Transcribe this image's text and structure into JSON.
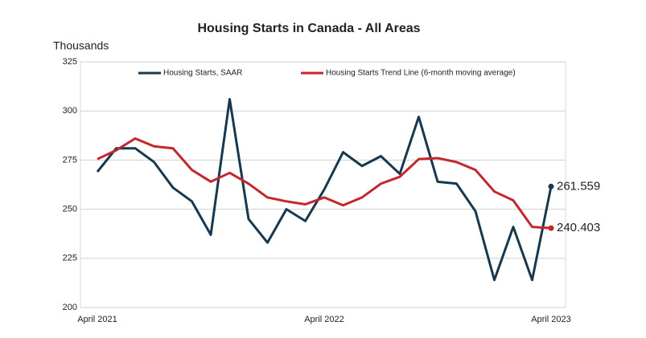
{
  "chart_data": {
    "type": "line",
    "title": "Housing Starts in Canada - All Areas",
    "y_label": "Thousands",
    "categories": [
      "April 2021",
      null,
      null,
      null,
      null,
      null,
      null,
      null,
      null,
      null,
      null,
      null,
      "April 2022",
      null,
      null,
      null,
      null,
      null,
      null,
      null,
      null,
      null,
      null,
      null,
      "April 2023"
    ],
    "series": [
      {
        "name": "Housing Starts, SAAR",
        "color": "#17384f",
        "values": [
          269,
          281,
          281,
          274,
          261,
          254,
          237,
          306,
          245,
          233,
          250,
          244,
          260,
          279,
          272,
          277,
          268,
          297,
          264,
          263,
          249,
          214,
          241,
          214,
          261.559
        ]
      },
      {
        "name": "Housing Starts Trend Line (6-month moving average)",
        "color": "#c4262e",
        "values": [
          275.5,
          280,
          286,
          282,
          281,
          270,
          264,
          268.5,
          263,
          256,
          254,
          252.5,
          256,
          252,
          256,
          263,
          266.5,
          275.5,
          276,
          274,
          270,
          259,
          254.5,
          241,
          240.403
        ]
      }
    ],
    "ylim": [
      200,
      325
    ],
    "yticks": [
      200,
      225,
      250,
      275,
      300,
      325
    ],
    "grid": true
  }
}
